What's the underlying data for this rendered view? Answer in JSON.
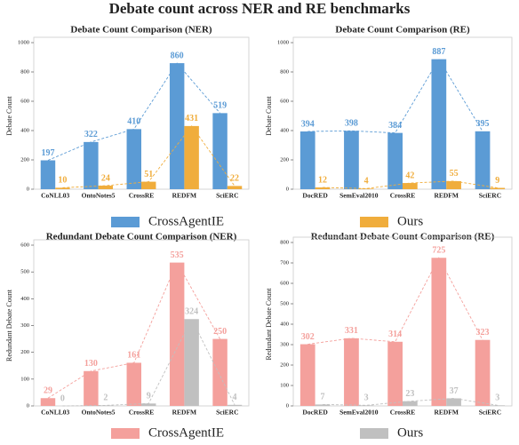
{
  "title": "Debate count across NER and RE benchmarks",
  "chart_data": [
    {
      "type": "bar",
      "title": "Debate Count Comparison (NER)",
      "ylabel": "Debate Count",
      "categories": [
        "CoNLL03",
        "OntoNotes5",
        "CrossRE",
        "REDFM",
        "SciERC"
      ],
      "series": [
        {
          "name": "CrossAgentIE",
          "color": "#5b9bd5",
          "values": [
            197,
            322,
            410,
            860,
            519
          ]
        },
        {
          "name": "Ours",
          "color": "#f0ad3c",
          "values": [
            10,
            24,
            51,
            431,
            22
          ]
        }
      ],
      "ylim": [
        0,
        1000
      ],
      "yticks": [
        0,
        200,
        400,
        600,
        800,
        1000
      ]
    },
    {
      "type": "bar",
      "title": "Debate Count Comparison (RE)",
      "ylabel": "Debate Count",
      "categories": [
        "DocRED",
        "SemEval2010",
        "CrossRE",
        "REDFM",
        "SciERC"
      ],
      "series": [
        {
          "name": "CrossAgentIE",
          "color": "#5b9bd5",
          "values": [
            394,
            398,
            384,
            887,
            395
          ]
        },
        {
          "name": "Ours",
          "color": "#f0ad3c",
          "values": [
            12,
            4,
            42,
            55,
            9
          ]
        }
      ],
      "ylim": [
        0,
        1000
      ],
      "yticks": [
        0,
        200,
        400,
        600,
        800,
        1000
      ]
    },
    {
      "type": "bar",
      "title": "Redundant Debate Count Comparison (NER)",
      "ylabel": "Redundant Debate Count",
      "categories": [
        "CoNLL03",
        "OntoNotes5",
        "CrossRE",
        "REDFM",
        "SciERC"
      ],
      "series": [
        {
          "name": "CrossAgentIE",
          "color": "#f4a09c",
          "values": [
            29,
            130,
            161,
            535,
            250
          ]
        },
        {
          "name": "Ours",
          "color": "#c0c0c0",
          "values": [
            0,
            2,
            9,
            324,
            4
          ]
        }
      ],
      "ylim": [
        0,
        600
      ],
      "yticks": [
        0,
        100,
        200,
        300,
        400,
        500,
        600
      ]
    },
    {
      "type": "bar",
      "title": "Redundant Debate Count Comparison (RE)",
      "ylabel": "Redundant Debate Count",
      "categories": [
        "DocRED",
        "SemEval2010",
        "CrossRE",
        "REDFM",
        "SciERC"
      ],
      "series": [
        {
          "name": "CrossAgentIE",
          "color": "#f4a09c",
          "values": [
            302,
            331,
            314,
            725,
            323
          ]
        },
        {
          "name": "Ours",
          "color": "#c0c0c0",
          "values": [
            7,
            3,
            23,
            37,
            3
          ]
        }
      ],
      "ylim": [
        0,
        800
      ],
      "yticks": [
        0,
        100,
        200,
        300,
        400,
        500,
        600,
        700,
        800
      ]
    }
  ]
}
